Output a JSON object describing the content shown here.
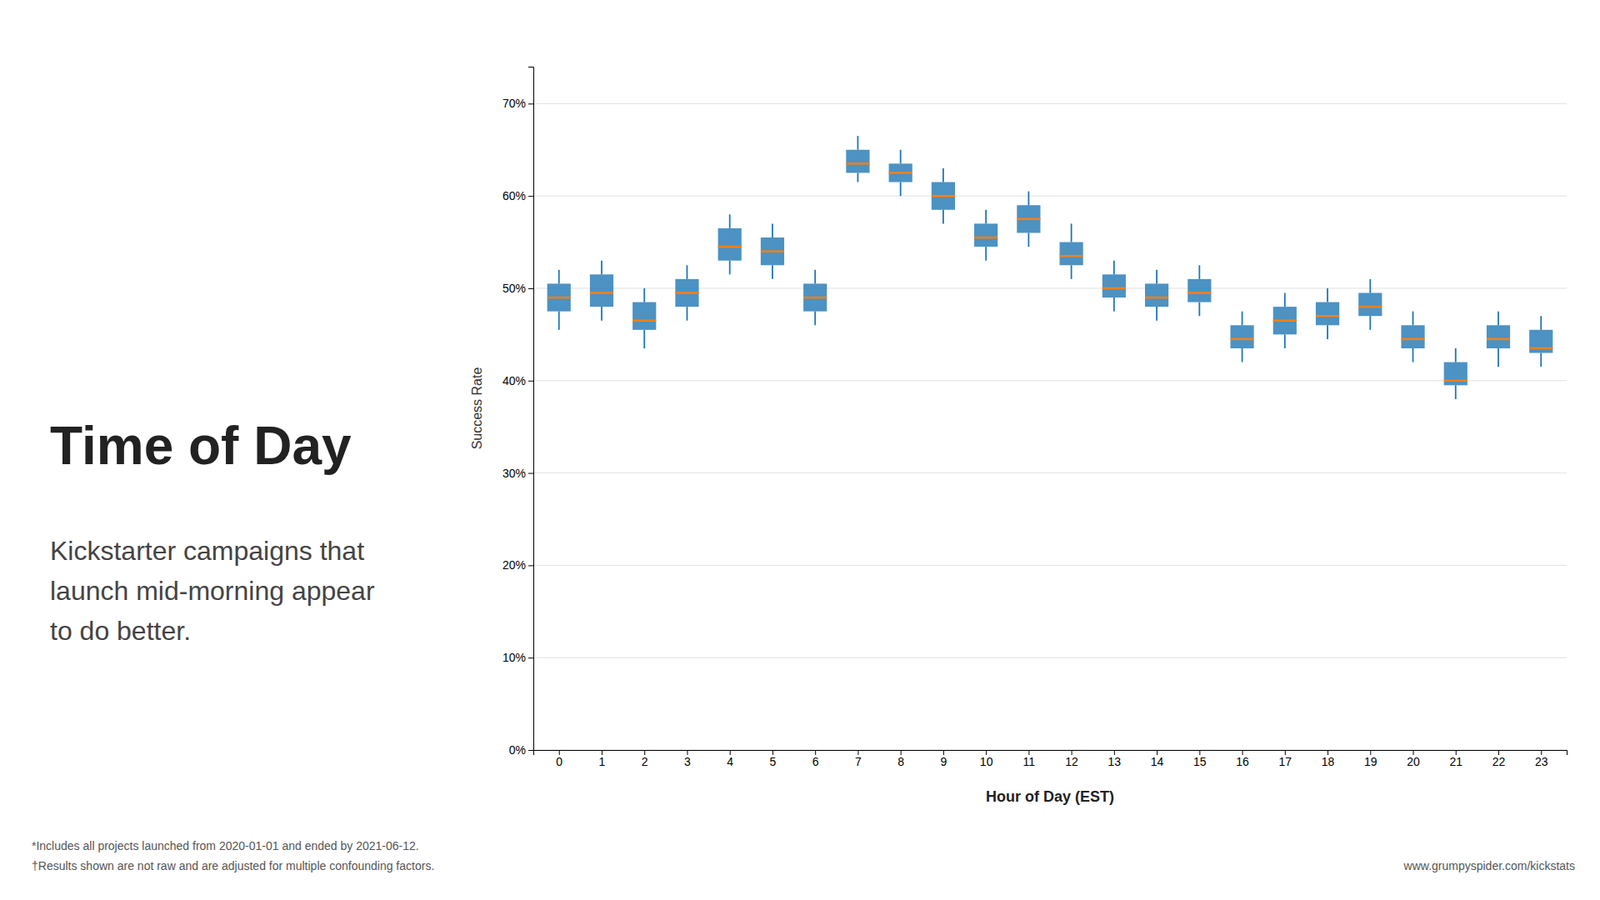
{
  "chart_data": {
    "type": "box",
    "title": "Time of Day",
    "subtitle": [
      "Kickstarter campaigns that",
      "launch mid-morning appear",
      "to do better."
    ],
    "annotations": [
      "*Includes all projects launched from 2020-01-01  and ended by 2021-06-12.",
      "†Results shown are not raw and are adjusted for multiple confounding factors.",
      "www.grumpyspider.com/kickstats"
    ],
    "x_label": "Hour of Day (EST)",
    "y_label": "Success Rate",
    "x": [
      0,
      1,
      2,
      3,
      4,
      5,
      6,
      7,
      8,
      9,
      10,
      11,
      12,
      13,
      14,
      15,
      16,
      17,
      18,
      19,
      20,
      21,
      22,
      23
    ],
    "median": [
      49.0,
      49.5,
      46.5,
      49.5,
      54.5,
      54.0,
      49.0,
      63.5,
      62.5,
      60.0,
      55.5,
      57.5,
      53.5,
      50.0,
      49.0,
      49.5,
      44.5,
      46.5,
      47.0,
      48.0,
      44.5,
      40.0,
      44.5,
      43.5
    ],
    "q1": [
      47.5,
      48.0,
      45.5,
      48.0,
      53.0,
      52.5,
      47.5,
      62.5,
      61.5,
      58.5,
      54.5,
      56.0,
      52.5,
      49.0,
      48.0,
      48.5,
      43.5,
      45.0,
      46.0,
      47.0,
      43.5,
      39.5,
      43.5,
      43.0
    ],
    "q3": [
      50.5,
      51.5,
      48.5,
      51.0,
      56.5,
      55.5,
      50.5,
      65.0,
      63.5,
      61.5,
      57.0,
      59.0,
      55.0,
      51.5,
      50.5,
      51.0,
      46.0,
      48.0,
      48.5,
      49.5,
      46.0,
      42.0,
      46.0,
      45.5
    ],
    "whislo": [
      45.5,
      46.5,
      43.5,
      46.5,
      51.5,
      51.0,
      46.0,
      61.5,
      60.0,
      57.0,
      53.0,
      54.5,
      51.0,
      47.5,
      46.5,
      47.0,
      42.0,
      43.5,
      44.5,
      45.5,
      42.0,
      38.0,
      41.5,
      41.5
    ],
    "whishi": [
      52.0,
      53.0,
      50.0,
      52.5,
      58.0,
      57.0,
      52.0,
      66.5,
      65.0,
      63.0,
      58.5,
      60.5,
      57.0,
      53.0,
      52.0,
      52.5,
      47.5,
      49.5,
      50.0,
      51.0,
      47.5,
      43.5,
      47.5,
      47.0
    ],
    "xlim": [
      -0.6,
      23.6
    ],
    "xticks": [
      0,
      1,
      2,
      3,
      4,
      5,
      6,
      7,
      8,
      9,
      10,
      11,
      12,
      13,
      14,
      15,
      16,
      17,
      18,
      19,
      20,
      21,
      22,
      23
    ],
    "ylim": [
      0,
      74
    ],
    "yticks": [
      {
        "value": 0,
        "label": "0%"
      },
      {
        "value": 10,
        "label": "10%"
      },
      {
        "value": 20,
        "label": "20%"
      },
      {
        "value": 30,
        "label": "30%"
      },
      {
        "value": 40,
        "label": "40%"
      },
      {
        "value": 50,
        "label": "50%"
      },
      {
        "value": 60,
        "label": "60%"
      },
      {
        "value": 70,
        "label": "70%"
      }
    ],
    "grid": true
  }
}
